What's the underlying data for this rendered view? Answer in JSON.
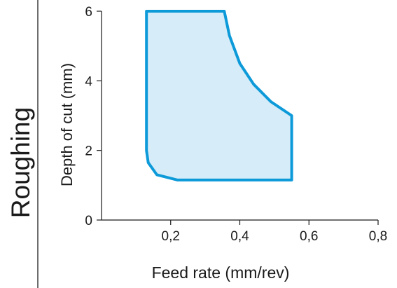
{
  "side_label": "Roughing",
  "chart_data": {
    "type": "area",
    "title": "",
    "xlabel": "Feed rate (mm/rev)",
    "ylabel": "Depth of cut (mm)",
    "xlim": [
      0.0,
      0.8
    ],
    "ylim": [
      0,
      6
    ],
    "x_ticks": [
      {
        "value": 0.2,
        "label": "0,2"
      },
      {
        "value": 0.4,
        "label": "0,4"
      },
      {
        "value": 0.6,
        "label": "0,6"
      },
      {
        "value": 0.8,
        "label": "0,8"
      }
    ],
    "y_ticks": [
      {
        "value": 0,
        "label": "0"
      },
      {
        "value": 2,
        "label": "2"
      },
      {
        "value": 4,
        "label": "4"
      },
      {
        "value": 6,
        "label": "6"
      }
    ],
    "grid": false,
    "region": {
      "points": [
        [
          0.13,
          6.0
        ],
        [
          0.355,
          6.0
        ],
        [
          0.37,
          5.3
        ],
        [
          0.4,
          4.5
        ],
        [
          0.44,
          3.9
        ],
        [
          0.49,
          3.4
        ],
        [
          0.55,
          3.0
        ],
        [
          0.55,
          1.15
        ],
        [
          0.22,
          1.15
        ],
        [
          0.16,
          1.3
        ],
        [
          0.135,
          1.65
        ],
        [
          0.13,
          2.0
        ]
      ],
      "fill": "#d6ecf8",
      "stroke": "#0d9ad9"
    },
    "axis_color": "#1a1a1a"
  }
}
